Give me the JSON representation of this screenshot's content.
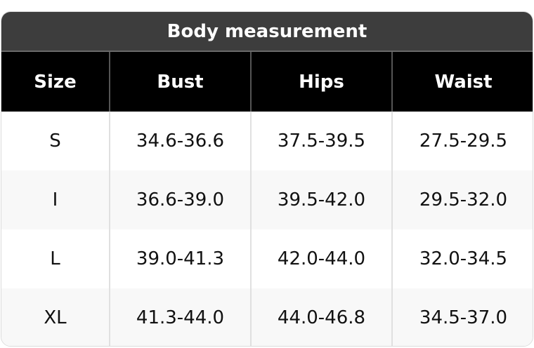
{
  "title": "Body measurement",
  "columns": [
    "Size",
    "Bust",
    "Hips",
    "Waist"
  ],
  "rows": [
    [
      "S",
      "34.6-36.6",
      "37.5-39.5",
      "27.5-29.5"
    ],
    [
      "I",
      "36.6-39.0",
      "39.5-42.0",
      "29.5-32.0"
    ],
    [
      "L",
      "39.0-41.3",
      "42.0-44.0",
      "32.0-34.5"
    ],
    [
      "XL",
      "41.3-44.0",
      "44.0-46.8",
      "34.5-37.0"
    ]
  ]
}
